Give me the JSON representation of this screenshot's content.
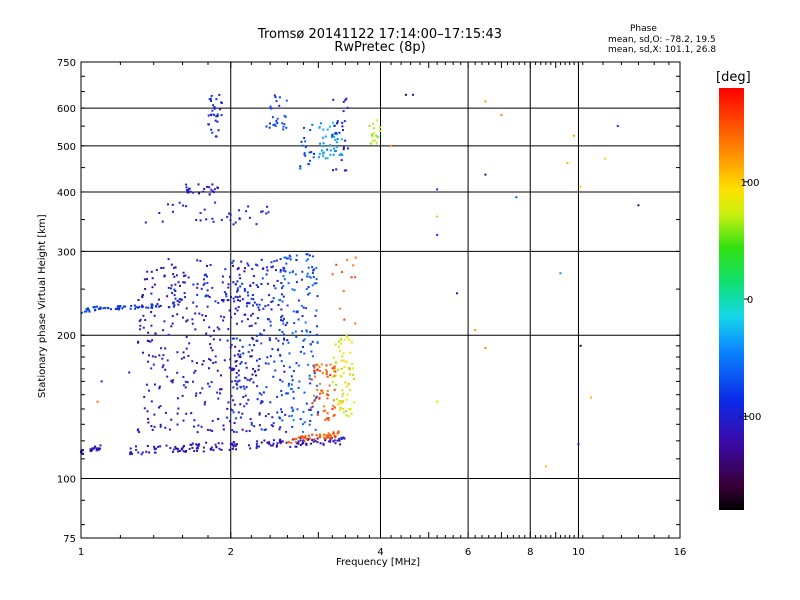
{
  "title_line1": "Tromsø 20141122 17:14:00–17:15:43",
  "title_line2": "RwPretec (8p)",
  "phase_heading": "Phase",
  "phase_line1": "mean, sd,O: –78.2, 19.5",
  "phase_line2": "mean, sd,X: 101.1, 26.8",
  "colorbar_unit": "[deg]",
  "chart_data": {
    "type": "scatter",
    "title": "Tromsø 20141122 17:14:00–17:15:43",
    "subtitle": "RwPretec (8p)",
    "xlabel": "Frequency [MHz]",
    "ylabel": "Stationary phase Virtual Height [km]",
    "x_scale": "log",
    "y_scale": "log",
    "xlim": [
      1,
      16
    ],
    "ylim": [
      75,
      750
    ],
    "x_ticks": [
      1,
      2,
      4,
      6,
      8,
      10,
      16
    ],
    "x_tick_labels": [
      "1",
      "2",
      "4",
      "6",
      "8",
      "10",
      "16"
    ],
    "x_grid": [
      2,
      4,
      6,
      8,
      10
    ],
    "y_ticks": [
      75,
      100,
      200,
      300,
      400,
      500,
      600,
      750
    ],
    "y_tick_labels": [
      "75",
      "100",
      "200",
      "300",
      "400",
      "500",
      "600",
      "750"
    ],
    "y_grid": [
      100,
      200,
      300,
      400,
      500,
      600
    ],
    "colorbar": {
      "label": "[deg]",
      "range": [
        -180,
        180
      ],
      "tick_values": [
        100,
        0,
        -100
      ],
      "tick_labels": [
        "100",
        "0",
        "-100"
      ]
    },
    "clusters": [
      {
        "x_range": [
          1.25,
          3.4
        ],
        "y_range": [
          112,
          123
        ],
        "phase_range": [
          -135,
          -95
        ],
        "shape": "trace",
        "n": 160
      },
      {
        "x_range": [
          2.6,
          3.3
        ],
        "y_range": [
          118,
          126
        ],
        "phase_range": [
          130,
          160
        ],
        "shape": "trace",
        "n": 50
      },
      {
        "x_range": [
          1.3,
          2.3
        ],
        "y_range": [
          125,
          290
        ],
        "phase_range": [
          -130,
          -90
        ],
        "shape": "cloud",
        "n": 320
      },
      {
        "x_range": [
          2.0,
          2.6
        ],
        "y_range": [
          125,
          290
        ],
        "phase_range": [
          -120,
          -70
        ],
        "shape": "cloud",
        "n": 180
      },
      {
        "x_range": [
          2.5,
          3.0
        ],
        "y_range": [
          125,
          300
        ],
        "phase_range": [
          -95,
          -50
        ],
        "shape": "cloud",
        "n": 160
      },
      {
        "x_range": [
          2.9,
          3.25
        ],
        "y_range": [
          132,
          175
        ],
        "phase_range": [
          130,
          165
        ],
        "shape": "cloud",
        "n": 60
      },
      {
        "x_range": [
          3.2,
          3.55
        ],
        "y_range": [
          135,
          200
        ],
        "phase_range": [
          60,
          110
        ],
        "shape": "cloud",
        "n": 70
      },
      {
        "x_range": [
          1.0,
          1.1
        ],
        "y_range": [
          112,
          118
        ],
        "phase_range": [
          -125,
          -105
        ],
        "shape": "trace",
        "n": 25
      },
      {
        "x_range": [
          1.0,
          1.12
        ],
        "y_range": [
          222,
          232
        ],
        "phase_range": [
          -95,
          -70
        ],
        "shape": "trace",
        "n": 20
      },
      {
        "x_range": [
          1.12,
          1.6
        ],
        "y_range": [
          225,
          235
        ],
        "phase_range": [
          -100,
          -75
        ],
        "shape": "trace",
        "n": 40
      },
      {
        "x_range": [
          1.5,
          2.2
        ],
        "y_range": [
          235,
          260
        ],
        "phase_range": [
          -110,
          -80
        ],
        "shape": "cloud",
        "n": 40
      },
      {
        "x_range": [
          1.6,
          1.9
        ],
        "y_range": [
          395,
          415
        ],
        "phase_range": [
          -125,
          -100
        ],
        "shape": "cloud",
        "n": 25
      },
      {
        "x_range": [
          1.4,
          2.4
        ],
        "y_range": [
          340,
          380
        ],
        "phase_range": [
          -115,
          -85
        ],
        "shape": "cloud",
        "n": 35
      },
      {
        "x_range": [
          1.8,
          1.92
        ],
        "y_range": [
          520,
          640
        ],
        "phase_range": [
          -110,
          -80
        ],
        "shape": "cloud",
        "n": 30
      },
      {
        "x_range": [
          2.35,
          2.6
        ],
        "y_range": [
          540,
          640
        ],
        "phase_range": [
          -95,
          -65
        ],
        "shape": "cloud",
        "n": 25
      },
      {
        "x_range": [
          2.75,
          2.95
        ],
        "y_range": [
          440,
          560
        ],
        "phase_range": [
          -90,
          -60
        ],
        "shape": "cloud",
        "n": 20
      },
      {
        "x_range": [
          3.0,
          3.35
        ],
        "y_range": [
          470,
          560
        ],
        "phase_range": [
          -50,
          -20
        ],
        "shape": "cloud",
        "n": 45
      },
      {
        "x_range": [
          3.2,
          3.45
        ],
        "y_range": [
          440,
          640
        ],
        "phase_range": [
          -115,
          -90
        ],
        "shape": "cloud",
        "n": 25
      },
      {
        "x_range": [
          3.8,
          4.0
        ],
        "y_range": [
          500,
          580
        ],
        "phase_range": [
          55,
          75
        ],
        "shape": "cloud",
        "n": 15
      },
      {
        "x_range": [
          3.2,
          3.6
        ],
        "y_range": [
          210,
          300
        ],
        "phase_range": [
          130,
          160
        ],
        "shape": "cloud",
        "n": 12
      }
    ],
    "isolated_points": [
      {
        "x": 4.5,
        "y": 640,
        "phase": -160
      },
      {
        "x": 4.65,
        "y": 640,
        "phase": -120
      },
      {
        "x": 6.5,
        "y": 620,
        "phase": 120
      },
      {
        "x": 7.0,
        "y": 580,
        "phase": 130
      },
      {
        "x": 12.0,
        "y": 550,
        "phase": -90
      },
      {
        "x": 5.2,
        "y": 405,
        "phase": -90
      },
      {
        "x": 7.5,
        "y": 390,
        "phase": -70
      },
      {
        "x": 5.2,
        "y": 325,
        "phase": -90
      },
      {
        "x": 5.7,
        "y": 245,
        "phase": -110
      },
      {
        "x": 6.5,
        "y": 435,
        "phase": -130
      },
      {
        "x": 6.2,
        "y": 205,
        "phase": 120
      },
      {
        "x": 6.5,
        "y": 188,
        "phase": 130
      },
      {
        "x": 10.1,
        "y": 190,
        "phase": -170
      },
      {
        "x": 10.0,
        "y": 118,
        "phase": -110
      },
      {
        "x": 9.2,
        "y": 270,
        "phase": -40
      },
      {
        "x": 9.5,
        "y": 460,
        "phase": 110
      },
      {
        "x": 10.1,
        "y": 410,
        "phase": 100
      },
      {
        "x": 11.3,
        "y": 470,
        "phase": 100
      },
      {
        "x": 13.2,
        "y": 375,
        "phase": -140
      },
      {
        "x": 8.6,
        "y": 106,
        "phase": 110
      },
      {
        "x": 10.6,
        "y": 148,
        "phase": 110
      },
      {
        "x": 5.2,
        "y": 145,
        "phase": 100
      },
      {
        "x": 5.2,
        "y": 355,
        "phase": 110
      },
      {
        "x": 9.8,
        "y": 525,
        "phase": 120
      },
      {
        "x": 4.2,
        "y": 500,
        "phase": 120
      },
      {
        "x": 1.08,
        "y": 145,
        "phase": 140
      },
      {
        "x": 1.1,
        "y": 160,
        "phase": -90
      },
      {
        "x": 1.25,
        "y": 167,
        "phase": -100
      },
      {
        "x": 1.35,
        "y": 345,
        "phase": -110
      }
    ]
  }
}
